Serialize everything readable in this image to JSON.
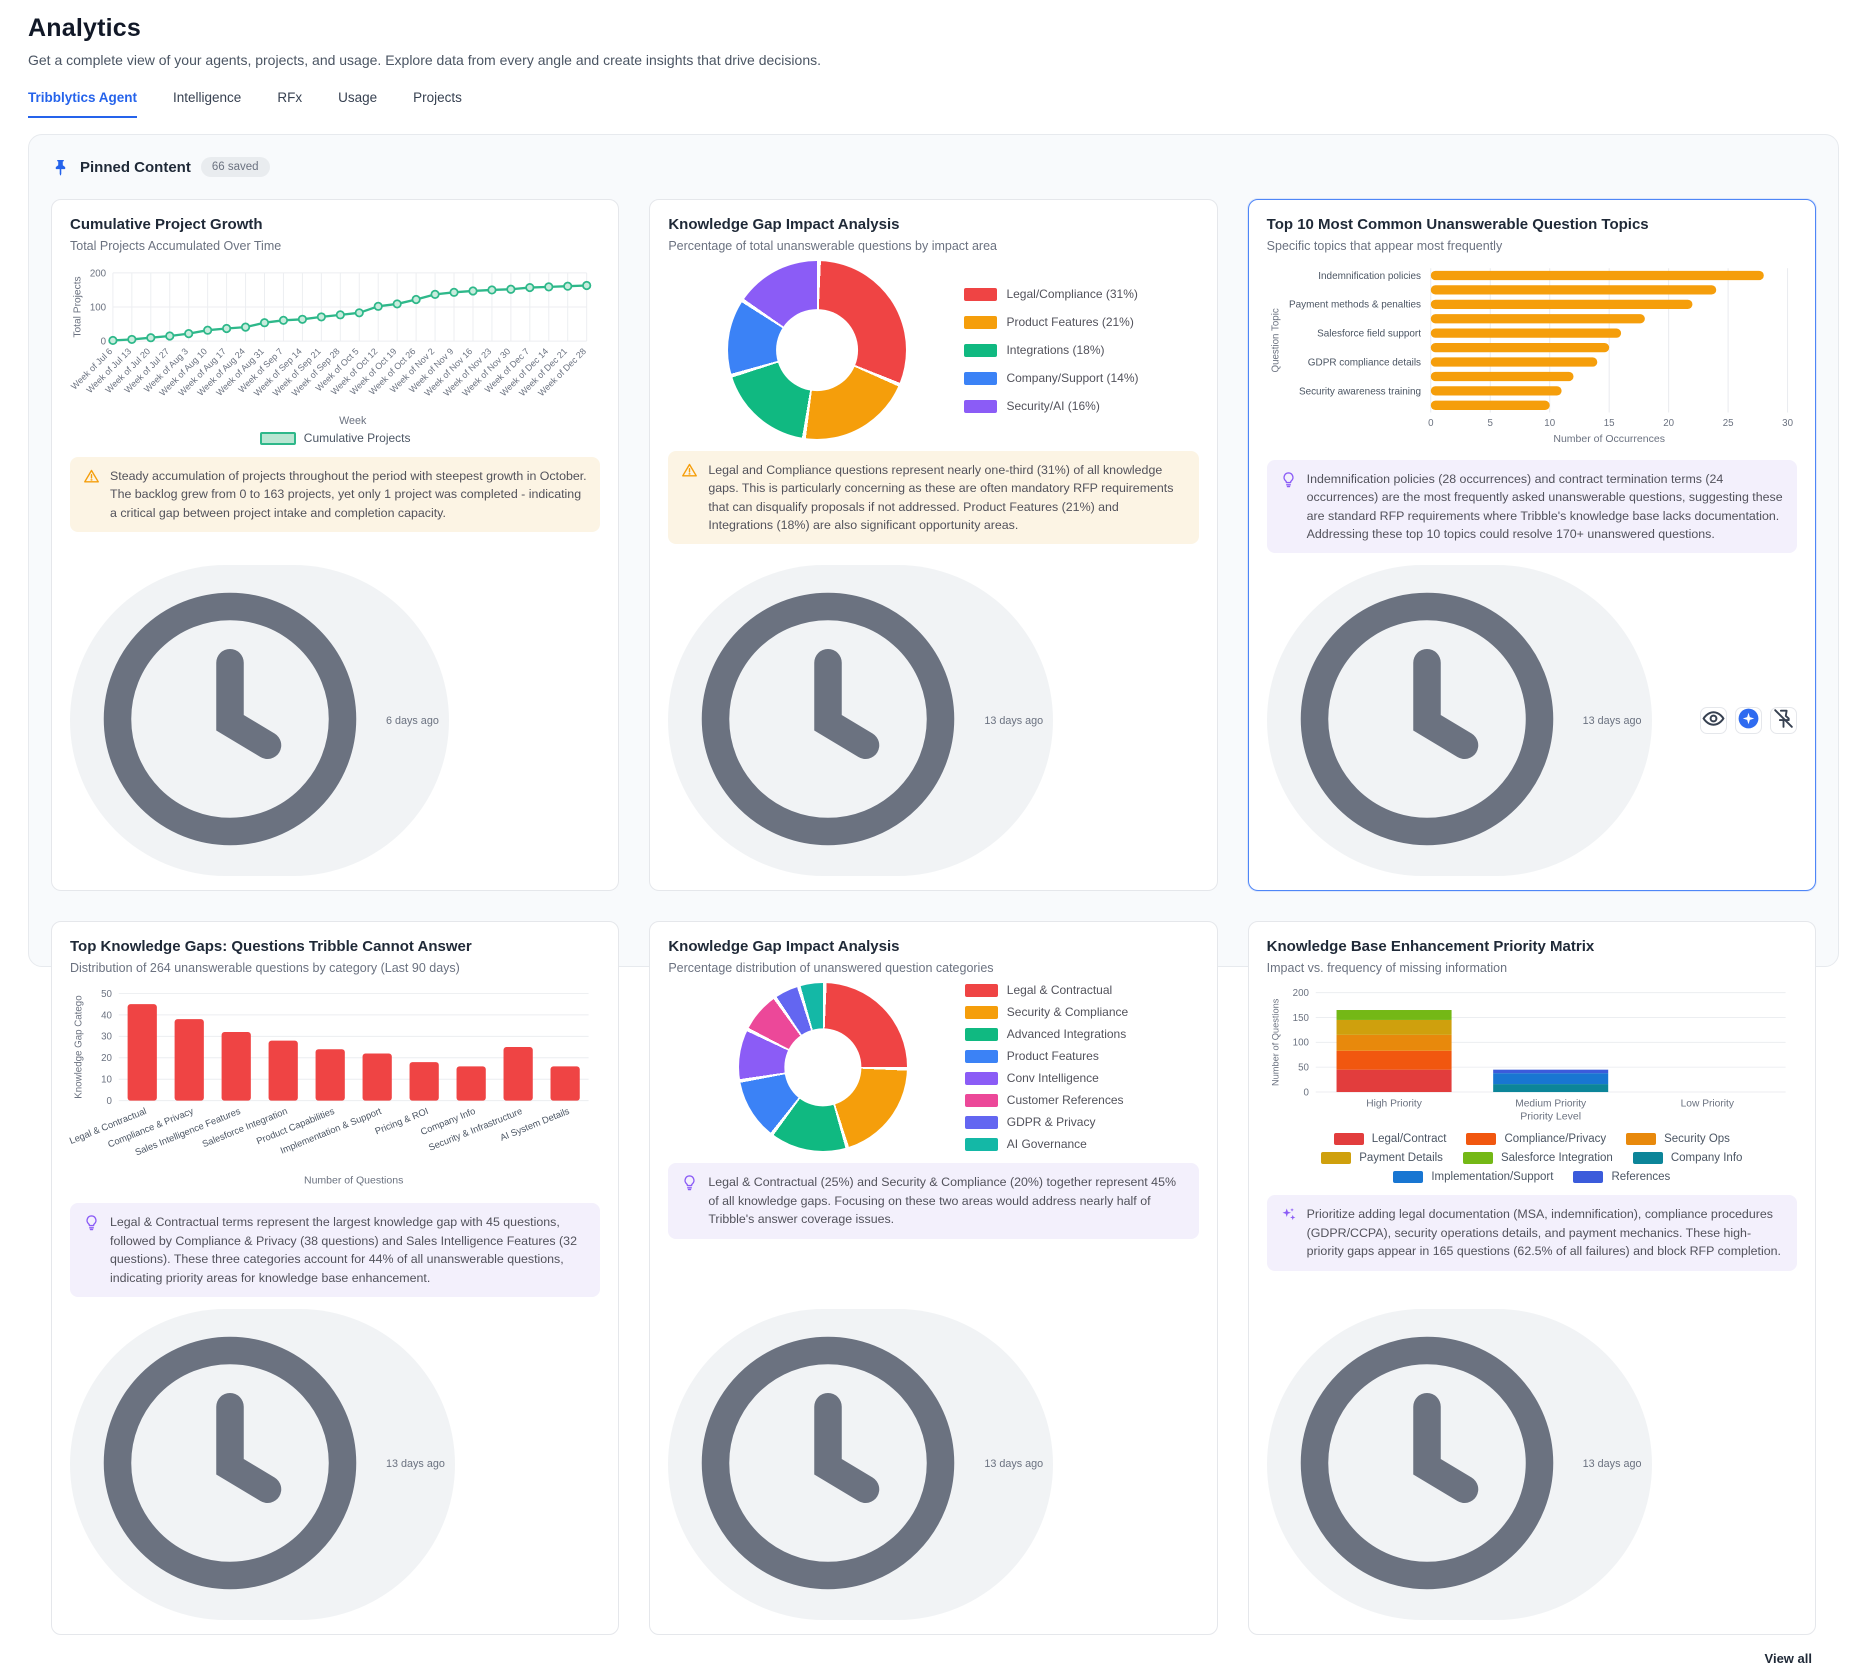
{
  "header": {
    "title": "Analytics",
    "subtitle": "Get a complete view of your agents, projects, and usage. Explore data from every angle and create insights that drive decisions."
  },
  "tabs": [
    {
      "label": "Tribblytics Agent",
      "active": true
    },
    {
      "label": "Intelligence",
      "active": false
    },
    {
      "label": "RFx",
      "active": false
    },
    {
      "label": "Usage",
      "active": false
    },
    {
      "label": "Projects",
      "active": false
    }
  ],
  "panel": {
    "title": "Pinned Content",
    "badge": "66 saved",
    "view_all": "View all",
    "pin_icon": "pin-icon"
  },
  "colors": {
    "accent_blue": "#2563eb",
    "line_green": "#2eb88a",
    "bar_orange": "#f59e0b",
    "bar_red": "#ef4444",
    "insight_purple": "#8b5cf6",
    "warning_amber": "#f59e0b"
  },
  "chart_data": [
    {
      "type": "line",
      "x": [
        "Week of Jul 6",
        "Week of Jul 13",
        "Week of Jul 20",
        "Week of Jul 27",
        "Week of Aug 3",
        "Week of Aug 10",
        "Week of Aug 17",
        "Week of Aug 24",
        "Week of Aug 31",
        "Week of Sep 7",
        "Week of Sep 14",
        "Week of Sep 21",
        "Week of Sep 28",
        "Week of Oct 5",
        "Week of Oct 12",
        "Week of Oct 19",
        "Week of Oct 26",
        "Week of Nov 2",
        "Week of Nov 9",
        "Week of Nov 16",
        "Week of Nov 23",
        "Week of Nov 30",
        "Week of Dec 7",
        "Week of Dec 14",
        "Week of Dec 21",
        "Week of Dec 28"
      ],
      "series": [
        {
          "name": "Cumulative Projects",
          "values": [
            2,
            5,
            10,
            15,
            22,
            32,
            37,
            41,
            54,
            61,
            64,
            71,
            77,
            83,
            102,
            109,
            122,
            137,
            143,
            147,
            150,
            152,
            157,
            159,
            161,
            163
          ],
          "color": "#2eb88a"
        }
      ],
      "xlabel": "Week",
      "ylabel": "Total Projects",
      "ylim": [
        0,
        200
      ],
      "yticks": [
        0,
        100,
        200
      ],
      "grid": true,
      "legend_position": "bottom"
    },
    {
      "type": "pie",
      "labels": [
        "Legal/Compliance (31%)",
        "Product Features (21%)",
        "Integrations (18%)",
        "Company/Support (14%)",
        "Security/AI (16%)"
      ],
      "values": [
        31,
        21,
        18,
        14,
        16
      ],
      "colors": [
        "#ef4444",
        "#f59e0b",
        "#10b981",
        "#3b82f6",
        "#8b5cf6"
      ],
      "donut": true,
      "legend_position": "right"
    },
    {
      "type": "bar",
      "orientation": "horizontal",
      "categories": [
        "Indemnification policies",
        "",
        "Payment methods & penalties",
        "",
        "Salesforce field support",
        "",
        "GDPR compliance details",
        "",
        "Security awareness training",
        ""
      ],
      "values": [
        28,
        24,
        22,
        18,
        16,
        15,
        14,
        12,
        11,
        10
      ],
      "color": "#f59e0b",
      "xlabel": "Number of Occurrences",
      "ylabel": "Question Topic",
      "xticks": [
        0,
        5,
        10,
        15,
        20,
        25,
        30
      ],
      "xlim": [
        0,
        30
      ],
      "grid": true
    },
    {
      "type": "bar",
      "orientation": "vertical",
      "categories": [
        "Legal & Contractual",
        "Compliance & Privacy",
        "Sales Intelligence Features",
        "Salesforce Integration",
        "Product Capabilities",
        "Implementation & Support",
        "Pricing & ROI",
        "Company Info",
        "Security & Infrastructure",
        "AI System Details"
      ],
      "values": [
        45,
        38,
        32,
        28,
        24,
        22,
        18,
        16,
        25,
        16
      ],
      "color": "#ef4444",
      "xlabel": "Number of Questions",
      "ylabel": "Knowledge Gap Catego",
      "yticks": [
        0,
        10,
        20,
        30,
        40,
        50
      ],
      "ylim": [
        0,
        50
      ],
      "grid": true
    },
    {
      "type": "pie",
      "labels": [
        "Legal & Contractual",
        "Security & Compliance",
        "Advanced Integrations",
        "Product Features",
        "Conv Intelligence",
        "Customer References",
        "GDPR & Privacy",
        "AI Governance"
      ],
      "values": [
        25,
        20,
        15,
        12,
        10,
        8,
        5,
        5
      ],
      "colors": [
        "#ef4444",
        "#f59e0b",
        "#10b981",
        "#3b82f6",
        "#8b5cf6",
        "#ec4899",
        "#6366f1",
        "#14b8a6"
      ],
      "donut": true,
      "legend_position": "right"
    },
    {
      "type": "stacked-bar",
      "categories": [
        "High Priority",
        "Medium Priority",
        "Low Priority"
      ],
      "series": [
        {
          "name": "Legal/Contract",
          "color": "#e23d3d",
          "values": [
            45,
            0,
            0
          ]
        },
        {
          "name": "Compliance/Privacy",
          "color": "#f1570f",
          "values": [
            38,
            0,
            0
          ]
        },
        {
          "name": "Security Ops",
          "color": "#e8890c",
          "values": [
            32,
            0,
            0
          ]
        },
        {
          "name": "Payment Details",
          "color": "#cfa00d",
          "values": [
            30,
            0,
            0
          ]
        },
        {
          "name": "Salesforce Integration",
          "color": "#74b816",
          "values": [
            20,
            0,
            0
          ]
        },
        {
          "name": "Company Info",
          "color": "#0c8599",
          "values": [
            0,
            16,
            0
          ]
        },
        {
          "name": "Implementation/Support",
          "color": "#1876d2",
          "values": [
            0,
            22,
            0
          ]
        },
        {
          "name": "References",
          "color": "#3b5bdb",
          "values": [
            0,
            7,
            0
          ]
        }
      ],
      "xlabel": "Priority Level",
      "ylabel": "Number of Questions",
      "yticks": [
        0,
        50,
        100,
        150,
        200
      ],
      "ylim": [
        0,
        200
      ],
      "grid": true,
      "legend_position": "bottom"
    }
  ],
  "cards": [
    {
      "title": "Cumulative Project Growth",
      "subtitle": "Total Projects Accumulated Over Time",
      "chart_index": 0,
      "insight": {
        "type": "warning",
        "icon": "warning-triangle-icon",
        "text": "Steady accumulation of projects throughout the period with steepest growth in October. The backlog grew from 0 to 163 projects, yet only 1 project was completed - indicating a critical gap between project intake and completion capacity."
      },
      "footer": "6 days ago",
      "selected": false
    },
    {
      "title": "Knowledge Gap Impact Analysis",
      "subtitle": "Percentage of total unanswerable questions by impact area",
      "chart_index": 1,
      "insight": {
        "type": "warning",
        "icon": "warning-triangle-icon",
        "text": "Legal and Compliance questions represent nearly one-third (31%) of all knowledge gaps. This is particularly concerning as these are often mandatory RFP requirements that can disqualify proposals if not addressed. Product Features (21%) and Integrations (18%) are also significant opportunity areas."
      },
      "footer": "13 days ago",
      "selected": false
    },
    {
      "title": "Top 10 Most Common Unanswerable Question Topics",
      "subtitle": "Specific topics that appear most frequently",
      "chart_index": 2,
      "insight": {
        "type": "purple",
        "icon": "lightbulb-icon",
        "text": "Indemnification policies (28 occurrences) and contract termination terms (24 occurrences) are the most frequently asked unanswerable questions, suggesting these are standard RFP requirements where Tribble's knowledge base lacks documentation. Addressing these top 10 topics could resolve 170+ unanswered questions."
      },
      "footer": "13 days ago",
      "selected": true,
      "actions": [
        {
          "name": "view-button",
          "icon": "eye-icon"
        },
        {
          "name": "ai-insight-button",
          "icon": "ai-sparkle-icon"
        },
        {
          "name": "unpin-button",
          "icon": "pin-off-icon"
        }
      ]
    },
    {
      "title": "Top Knowledge Gaps: Questions Tribble Cannot Answer",
      "subtitle": "Distribution of 264 unanswerable questions by category (Last 90 days)",
      "chart_index": 3,
      "insight": {
        "type": "purple",
        "icon": "lightbulb-icon",
        "text": "Legal & Contractual terms represent the largest knowledge gap with 45 questions, followed by Compliance & Privacy (38 questions) and Sales Intelligence Features (32 questions). These three categories account for 44% of all unanswerable questions, indicating priority areas for knowledge base enhancement."
      },
      "footer": "13 days ago",
      "selected": false
    },
    {
      "title": "Knowledge Gap Impact Analysis",
      "subtitle": "Percentage distribution of unanswered question categories",
      "chart_index": 4,
      "insight": {
        "type": "purple",
        "icon": "lightbulb-icon",
        "text": "Legal & Contractual (25%) and Security & Compliance (20%) together represent 45% of all knowledge gaps. Focusing on these two areas would address nearly half of Tribble's answer coverage issues."
      },
      "footer": "13 days ago",
      "selected": false
    },
    {
      "title": "Knowledge Base Enhancement Priority Matrix",
      "subtitle": "Impact vs. frequency of missing information",
      "chart_index": 5,
      "insight": {
        "type": "purple",
        "icon": "sparkles-icon",
        "text": "Prioritize adding legal documentation (MSA, indemnification), compliance procedures (GDPR/CCPA), security operations details, and payment mechanics. These high-priority gaps appear in 165 questions (62.5% of all failures) and block RFP completion."
      },
      "footer": "13 days ago",
      "selected": false
    }
  ]
}
